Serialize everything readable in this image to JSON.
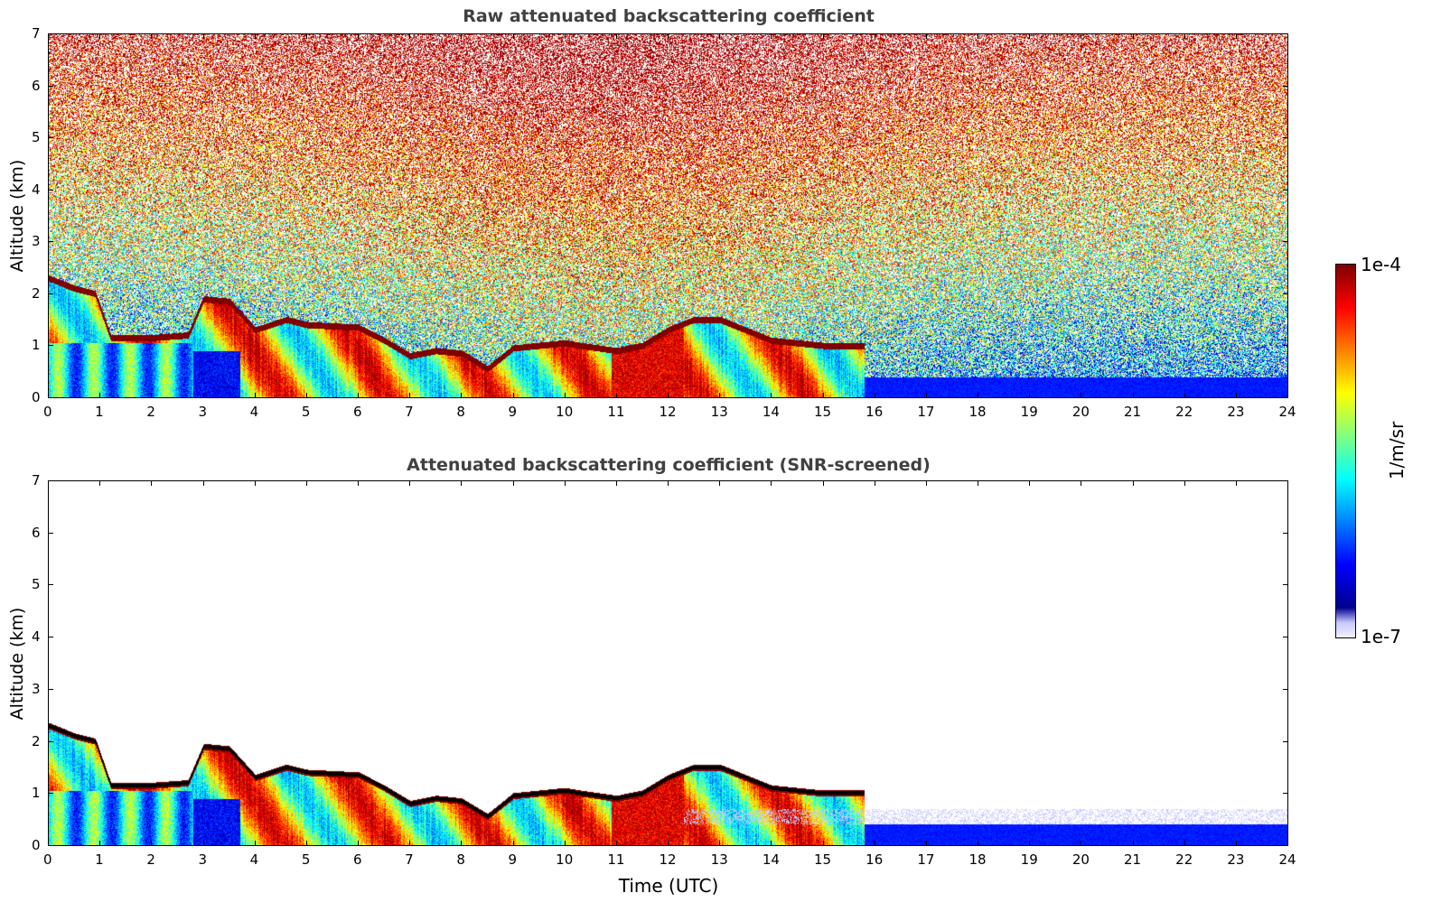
{
  "chart_data": [
    {
      "type": "heatmap",
      "title": "Raw attenuated backscattering coefficient",
      "xlabel": "",
      "ylabel": "Altitude (km)",
      "xlim": [
        0,
        24
      ],
      "ylim": [
        0,
        7
      ],
      "x_ticks": [
        0,
        1,
        2,
        3,
        4,
        5,
        6,
        7,
        8,
        9,
        10,
        11,
        12,
        13,
        14,
        15,
        16,
        17,
        18,
        19,
        20,
        21,
        22,
        23,
        24
      ],
      "y_ticks": [
        0,
        1,
        2,
        3,
        4,
        5,
        6,
        7
      ],
      "screened": false,
      "cloud_layer": {
        "time_utc": [
          0,
          0.5,
          0.9,
          1.2,
          2.0,
          2.7,
          3.0,
          3.5,
          4.0,
          4.6,
          5.0,
          6.0,
          6.5,
          7.0,
          7.5,
          8.0,
          8.5,
          9.0,
          9.5,
          10.0,
          10.3,
          11.0,
          11.5,
          12.0,
          12.5,
          13.0,
          14.0,
          15.0,
          15.8
        ],
        "altitude_km": [
          2.3,
          2.1,
          2.0,
          1.15,
          1.15,
          1.2,
          1.9,
          1.85,
          1.3,
          1.5,
          1.4,
          1.35,
          1.1,
          0.8,
          0.9,
          0.85,
          0.55,
          0.95,
          1.0,
          1.05,
          1.0,
          0.9,
          1.0,
          1.3,
          1.5,
          1.5,
          1.1,
          1.0,
          1.0
        ]
      }
    },
    {
      "type": "heatmap",
      "title": "Attenuated backscattering coefficient (SNR-screened)",
      "xlabel": "Time (UTC)",
      "ylabel": "Altitude (km)",
      "xlim": [
        0,
        24
      ],
      "ylim": [
        0,
        7
      ],
      "x_ticks": [
        0,
        1,
        2,
        3,
        4,
        5,
        6,
        7,
        8,
        9,
        10,
        11,
        12,
        13,
        14,
        15,
        16,
        17,
        18,
        19,
        20,
        21,
        22,
        23,
        24
      ],
      "y_ticks": [
        0,
        1,
        2,
        3,
        4,
        5,
        6,
        7
      ],
      "screened": true
    }
  ],
  "colorbar": {
    "max_label": "1e-4",
    "min_label": "1e-7",
    "unit": "1/m/sr",
    "scale": "log",
    "colormap": [
      "#00008f",
      "#0000ff",
      "#0080ff",
      "#00ffff",
      "#80ff80",
      "#ffff00",
      "#ff8000",
      "#ff0000",
      "#800000"
    ]
  }
}
